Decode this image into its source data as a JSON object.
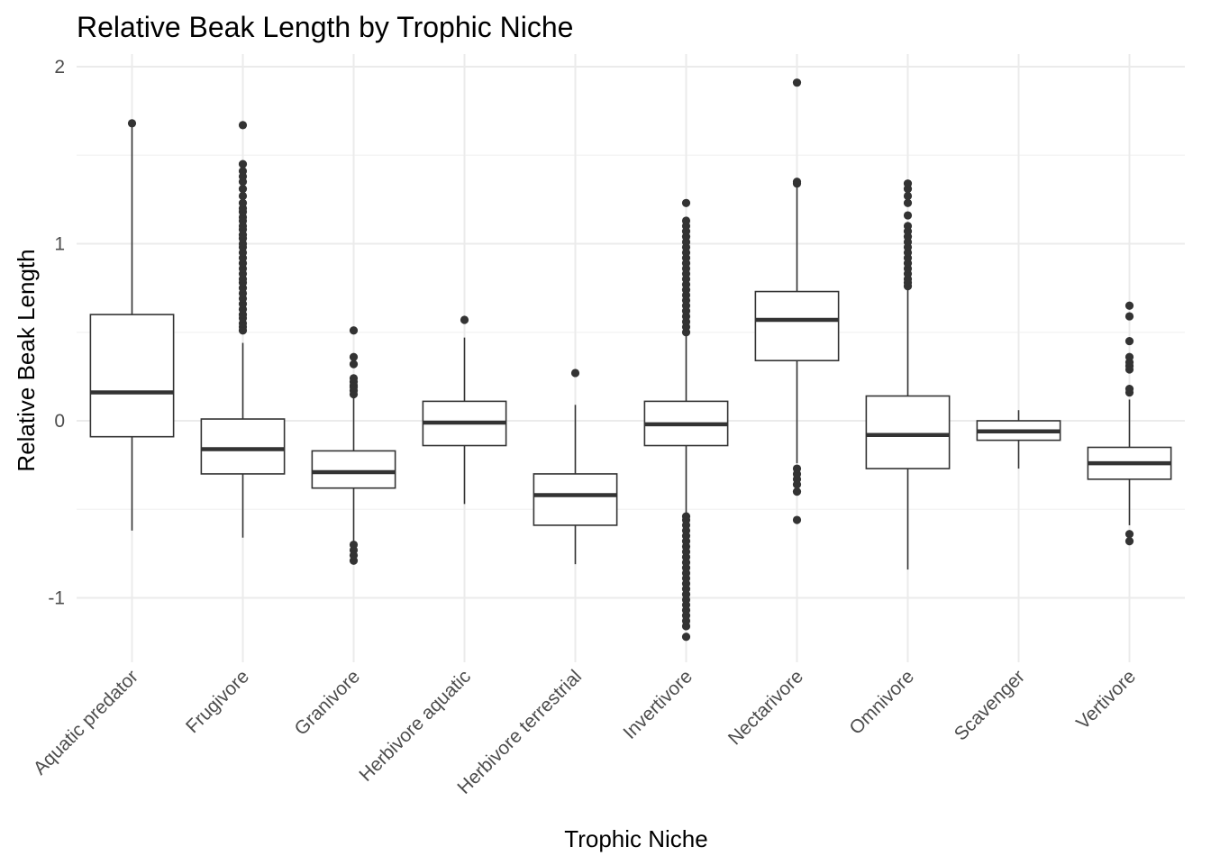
{
  "chart_data": {
    "type": "boxplot",
    "title": "Relative Beak Length by Trophic Niche",
    "xlabel": "Trophic Niche",
    "ylabel": "Relative Beak Length",
    "ylim": [
      -1.35,
      2.05
    ],
    "y_ticks": [
      -1,
      0,
      1,
      2
    ],
    "y_tick_labels": [
      "-1",
      "0",
      "1",
      "2"
    ],
    "grid": true,
    "legend": "none",
    "colors": {
      "box_stroke": "#333333",
      "box_fill": "#ffffff",
      "outlier": "#333333",
      "grid": "#ebebeb"
    },
    "categories": [
      "Aquatic predator",
      "Frugivore",
      "Granivore",
      "Herbivore aquatic",
      "Herbivore terrestrial",
      "Invertivore",
      "Nectarivore",
      "Omnivore",
      "Scavenger",
      "Vertivore"
    ],
    "boxes": [
      {
        "category": "Aquatic predator",
        "whisker_low": -0.62,
        "q1": -0.09,
        "median": 0.16,
        "q3": 0.6,
        "whisker_high": 1.67,
        "outliers": [
          1.68
        ]
      },
      {
        "category": "Frugivore",
        "whisker_low": -0.66,
        "q1": -0.3,
        "median": -0.16,
        "q3": 0.01,
        "whisker_high": 0.44,
        "outliers": [
          0.51,
          0.53,
          0.55,
          0.58,
          0.6,
          0.63,
          0.66,
          0.69,
          0.72,
          0.75,
          0.78,
          0.8,
          0.83,
          0.86,
          0.89,
          0.92,
          0.95,
          0.98,
          1.0,
          1.03,
          1.05,
          1.08,
          1.1,
          1.13,
          1.15,
          1.18,
          1.2,
          1.23,
          1.27,
          1.31,
          1.35,
          1.38,
          1.41,
          1.45,
          1.67
        ]
      },
      {
        "category": "Granivore",
        "whisker_low": -0.68,
        "q1": -0.38,
        "median": -0.29,
        "q3": -0.17,
        "whisker_high": 0.14,
        "outliers": [
          -0.79,
          -0.76,
          -0.73,
          -0.7,
          0.15,
          0.17,
          0.19,
          0.2,
          0.22,
          0.24,
          0.32,
          0.36,
          0.51
        ]
      },
      {
        "category": "Herbivore aquatic",
        "whisker_low": -0.47,
        "q1": -0.14,
        "median": -0.01,
        "q3": 0.11,
        "whisker_high": 0.47,
        "outliers": [
          0.57
        ]
      },
      {
        "category": "Herbivore terrestrial",
        "whisker_low": -0.81,
        "q1": -0.59,
        "median": -0.42,
        "q3": -0.3,
        "whisker_high": 0.09,
        "outliers": [
          0.27
        ]
      },
      {
        "category": "Invertivore",
        "whisker_low": -0.52,
        "q1": -0.14,
        "median": -0.02,
        "q3": 0.11,
        "whisker_high": 0.48,
        "outliers": [
          -1.22,
          -1.16,
          -1.13,
          -1.1,
          -1.07,
          -1.04,
          -1.01,
          -0.98,
          -0.95,
          -0.92,
          -0.89,
          -0.86,
          -0.83,
          -0.8,
          -0.77,
          -0.74,
          -0.71,
          -0.68,
          -0.65,
          -0.62,
          -0.59,
          -0.56,
          -0.54,
          0.5,
          0.53,
          0.56,
          0.59,
          0.62,
          0.65,
          0.68,
          0.71,
          0.74,
          0.77,
          0.8,
          0.83,
          0.86,
          0.89,
          0.92,
          0.95,
          0.98,
          1.01,
          1.04,
          1.07,
          1.1,
          1.13,
          1.23
        ]
      },
      {
        "category": "Nectarivore",
        "whisker_low": -0.24,
        "q1": 0.34,
        "median": 0.57,
        "q3": 0.73,
        "whisker_high": 1.32,
        "outliers": [
          -0.56,
          -0.4,
          -0.36,
          -0.33,
          -0.3,
          -0.27,
          1.34,
          1.35,
          1.91
        ]
      },
      {
        "category": "Omnivore",
        "whisker_low": -0.84,
        "q1": -0.27,
        "median": -0.08,
        "q3": 0.14,
        "whisker_high": 0.74,
        "outliers": [
          0.76,
          0.78,
          0.8,
          0.83,
          0.86,
          0.89,
          0.92,
          0.95,
          0.98,
          1.01,
          1.04,
          1.07,
          1.1,
          1.16,
          1.23,
          1.27,
          1.31,
          1.34
        ]
      },
      {
        "category": "Scavenger",
        "whisker_low": -0.27,
        "q1": -0.11,
        "median": -0.06,
        "q3": 0.0,
        "whisker_high": 0.06,
        "outliers": []
      },
      {
        "category": "Vertivore",
        "whisker_low": -0.59,
        "q1": -0.33,
        "median": -0.24,
        "q3": -0.15,
        "whisker_high": 0.12,
        "outliers": [
          -0.68,
          -0.64,
          0.16,
          0.18,
          0.29,
          0.31,
          0.33,
          0.36,
          0.45,
          0.59,
          0.65
        ]
      }
    ]
  }
}
